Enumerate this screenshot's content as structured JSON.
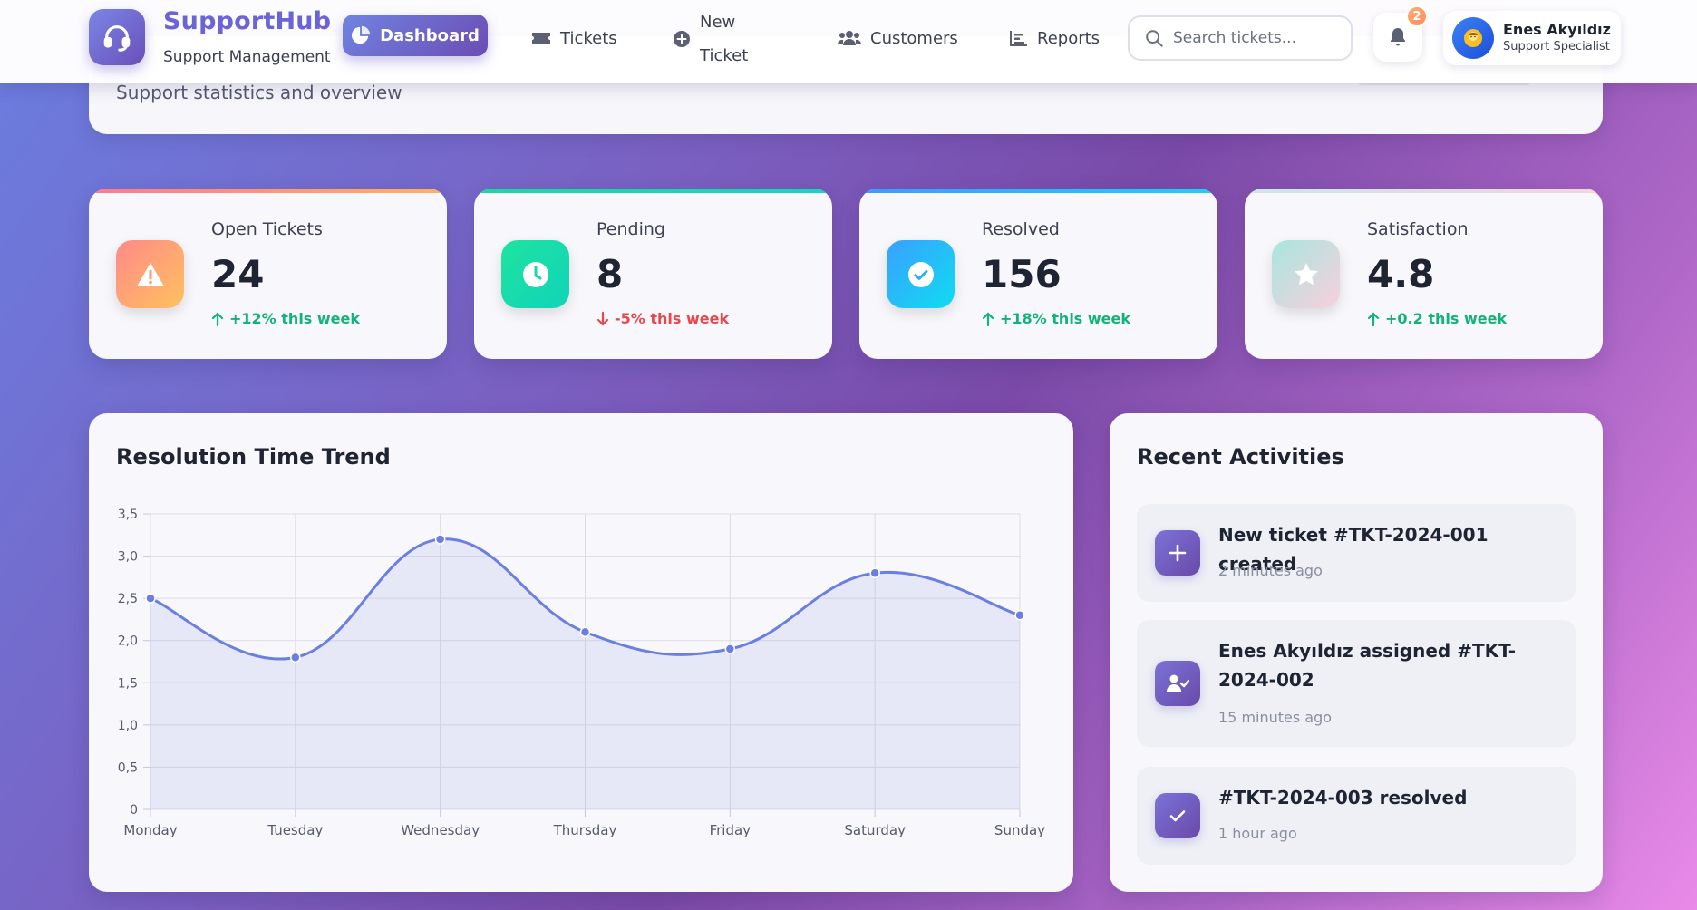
{
  "brand": {
    "name": "SupportHub",
    "subtitle": "Support Management"
  },
  "nav": {
    "dashboard": "Dashboard",
    "tickets": "Tickets",
    "new_ticket_line1": "New",
    "new_ticket_line2": "Ticket",
    "customers": "Customers",
    "reports": "Reports"
  },
  "search": {
    "placeholder": "Search tickets..."
  },
  "notifications": {
    "count": "2"
  },
  "user": {
    "name": "Enes Akyıldız",
    "role": "Support Specialist"
  },
  "header": {
    "subtitle": "Support statistics and overview"
  },
  "stats": [
    {
      "label": "Open Tickets",
      "value": "24",
      "change": "+12% this week",
      "trend": "up",
      "icon": "warning-icon"
    },
    {
      "label": "Pending",
      "value": "8",
      "change": "-5% this week",
      "trend": "down",
      "icon": "clock-icon"
    },
    {
      "label": "Resolved",
      "value": "156",
      "change": "+18% this week",
      "trend": "up",
      "icon": "check-circle-icon"
    },
    {
      "label": "Satisfaction",
      "value": "4.8",
      "change": "+0.2 this week",
      "trend": "up",
      "icon": "star-icon"
    }
  ],
  "colors": {
    "accent": "#6b63d6",
    "line": "#6a7fe0",
    "up": "#12b27a",
    "down": "#e5484d"
  },
  "chart": {
    "title": "Resolution Time Trend"
  },
  "chart_data": {
    "type": "line",
    "title": "",
    "categories": [
      "Monday",
      "Tuesday",
      "Wednesday",
      "Thursday",
      "Friday",
      "Saturday",
      "Sunday"
    ],
    "values": [
      2.5,
      1.8,
      3.2,
      2.1,
      1.9,
      2.8,
      2.3
    ],
    "ylim": [
      0,
      3.5
    ],
    "yticks": [
      "0",
      "0,5",
      "1,0",
      "1,5",
      "2,0",
      "2,5",
      "3,0",
      "3,5"
    ],
    "grid": true,
    "filled": true
  },
  "activities": {
    "title": "Recent Activities",
    "items": [
      {
        "text": "New ticket #TKT-2024-001 created",
        "time": "2 minutes ago",
        "icon": "plus-icon"
      },
      {
        "text": "Enes Akyıldız assigned #TKT-2024-002",
        "time": "15 minutes ago",
        "icon": "user-check-icon"
      },
      {
        "text": "#TKT-2024-003 resolved",
        "time": "1 hour ago",
        "icon": "check-icon"
      }
    ]
  }
}
